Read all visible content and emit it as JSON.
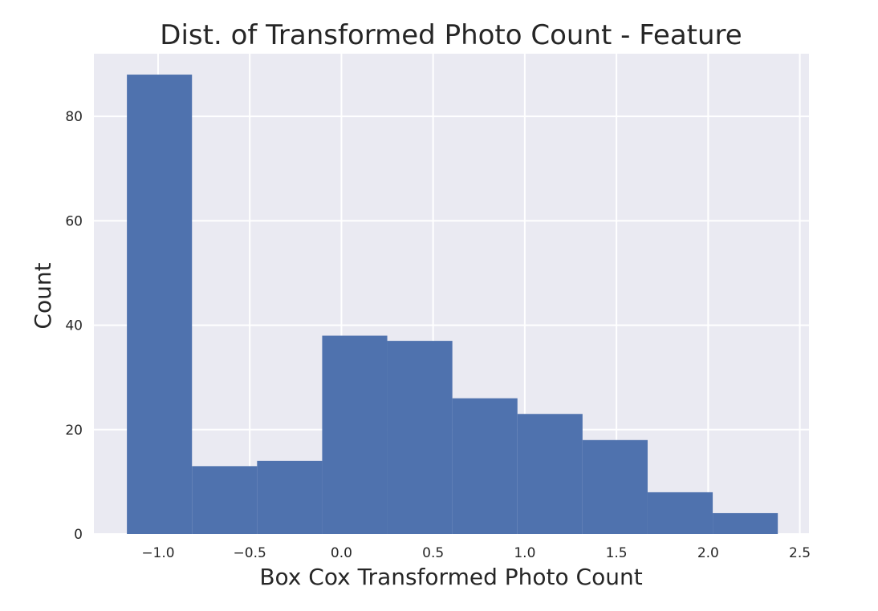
{
  "chart_data": {
    "type": "bar",
    "title": "Dist. of Transformed Photo Count - Feature",
    "xlabel": "Box Cox Transformed Photo Count",
    "ylabel": "Count",
    "xlim": [
      -1.35,
      2.55
    ],
    "ylim": [
      0,
      92
    ],
    "xticks": [
      -1.0,
      -0.5,
      0.0,
      0.5,
      1.0,
      1.5,
      2.0,
      2.5
    ],
    "xtick_labels": [
      "−1.0",
      "−0.5",
      "0.0",
      "0.5",
      "1.0",
      "1.5",
      "2.0",
      "2.5"
    ],
    "yticks": [
      0,
      20,
      40,
      60,
      80
    ],
    "ytick_labels": [
      "0",
      "20",
      "40",
      "60",
      "80"
    ],
    "bins": [
      {
        "x0": -1.17,
        "x1": -0.815,
        "count": 88
      },
      {
        "x0": -0.815,
        "x1": -0.46,
        "count": 13
      },
      {
        "x0": -0.46,
        "x1": -0.105,
        "count": 14
      },
      {
        "x0": -0.105,
        "x1": 0.25,
        "count": 38
      },
      {
        "x0": 0.25,
        "x1": 0.605,
        "count": 37
      },
      {
        "x0": 0.605,
        "x1": 0.96,
        "count": 26
      },
      {
        "x0": 0.96,
        "x1": 1.315,
        "count": 23
      },
      {
        "x0": 1.315,
        "x1": 1.67,
        "count": 18
      },
      {
        "x0": 1.67,
        "x1": 2.025,
        "count": 8
      },
      {
        "x0": 2.025,
        "x1": 2.38,
        "count": 4
      }
    ],
    "grid": true,
    "style": {
      "background": "#EAEAF2",
      "gridColor": "#FFFFFF",
      "barColor": "#4F72AE"
    }
  }
}
